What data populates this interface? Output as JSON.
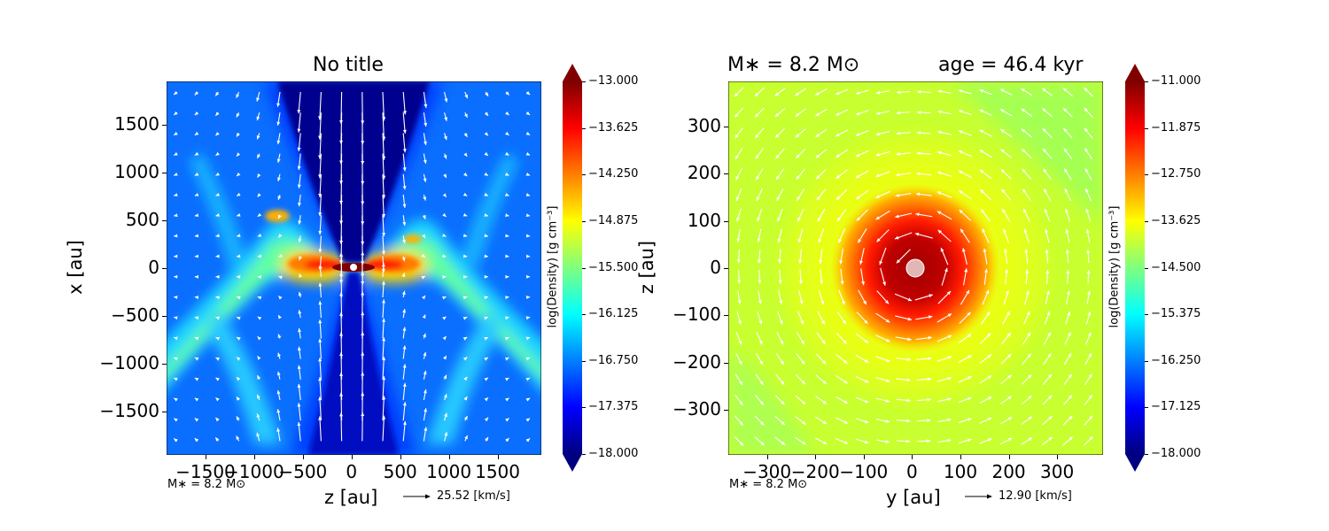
{
  "chart_data": [
    {
      "type": "heatmap",
      "title": "No title",
      "xlabel": "z [au]",
      "ylabel": "x [au]",
      "xlim": [
        -1900,
        1950
      ],
      "ylim": [
        -1950,
        1950
      ],
      "xticks": [
        "−1500",
        "−1000",
        "−500",
        "0",
        "500",
        "1000",
        "1500"
      ],
      "xtick_values": [
        -1500,
        -1000,
        -500,
        0,
        500,
        1000,
        1500
      ],
      "yticks": [
        "1500",
        "1000",
        "500",
        "0",
        "−500",
        "−1000",
        "−1500"
      ],
      "ytick_values": [
        1500,
        1000,
        500,
        0,
        -500,
        -1000,
        -1500
      ],
      "colorbar_label": "log(Density) [g cm⁻³]",
      "colorbar_range": [
        -18.0,
        -13.0
      ],
      "colorbar_ticks": [
        "−13.000",
        "−13.625",
        "−14.250",
        "−14.875",
        "−15.500",
        "−16.125",
        "−16.750",
        "−17.375",
        "−18.000"
      ],
      "colorbar_tick_values": [
        -13.0,
        -13.625,
        -14.25,
        -14.875,
        -15.5,
        -16.125,
        -16.75,
        -17.375,
        -18.0
      ],
      "mass_label": "M∗ = 8.2 M⊙",
      "velocity_key": "25.52 [km/s]"
    },
    {
      "type": "heatmap",
      "title_left": "M∗ = 8.2 M⊙",
      "title_right": "age = 46.4 kyr",
      "xlabel": "y [au]",
      "ylabel": "z [au]",
      "xlim": [
        -380,
        395
      ],
      "ylim": [
        -395,
        395
      ],
      "xticks": [
        "−300",
        "−200",
        "−100",
        "0",
        "100",
        "200",
        "300"
      ],
      "xtick_values": [
        -300,
        -200,
        -100,
        0,
        100,
        200,
        300
      ],
      "yticks": [
        "300",
        "200",
        "100",
        "0",
        "−100",
        "−200",
        "−300"
      ],
      "ytick_values": [
        300,
        200,
        100,
        0,
        -100,
        -200,
        -300
      ],
      "colorbar_label": "log(Density) [g cm⁻³]",
      "colorbar_range": [
        -18.0,
        -11.0
      ],
      "colorbar_ticks": [
        "−11.000",
        "−11.875",
        "−12.750",
        "−13.625",
        "−14.500",
        "−15.375",
        "−16.250",
        "−17.125",
        "−18.000"
      ],
      "colorbar_tick_values": [
        -11.0,
        -11.875,
        -12.75,
        -13.625,
        -14.5,
        -15.375,
        -16.25,
        -17.125,
        -18.0
      ],
      "mass_label": "M∗ = 8.2 M⊙",
      "velocity_key": "12.90 [km/s]"
    }
  ],
  "colors": {
    "jet": [
      "#00007f",
      "#0000ff",
      "#007fff",
      "#00ffff",
      "#7fff7f",
      "#ffff00",
      "#ff7f00",
      "#ff0000",
      "#7f0000"
    ]
  }
}
